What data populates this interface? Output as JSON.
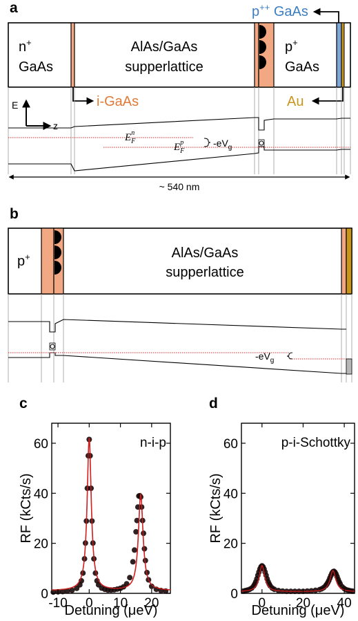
{
  "panel_a": {
    "letter": "a",
    "n_gaas_top": "n",
    "n_gaas_sup": "+",
    "n_gaas_bottom": "GaAs",
    "superlattice_line1": "AlAs/GaAs",
    "superlattice_line2": "supperlattice",
    "p_gaas_top": "p",
    "p_gaas_sup": "+",
    "p_gaas_bottom": "GaAs",
    "ppp_label": "p",
    "ppp_sup": "++",
    "ppp_suffix": " GaAs",
    "igaas_label": "i-GaAs",
    "au_label": "Au",
    "energy_axis": "E",
    "z_axis": "z",
    "efn_main": "E",
    "efn_sub": "F",
    "efn_sup": "n",
    "efp_main": "E",
    "efp_sub": "F",
    "efp_sup": "p",
    "vg_label": "-eV",
    "vg_sub": "g",
    "width_label": "~ 540 nm"
  },
  "panel_b": {
    "letter": "b",
    "p_label": "p",
    "p_sup": "+",
    "superlattice_line1": "AlAs/GaAs",
    "superlattice_line2": "supperlattice",
    "vg_label": "-eV",
    "vg_sub": "g"
  },
  "colors": {
    "igaas": "#f2a882",
    "ppp": "#7fa6d6",
    "au": "#c8961c",
    "gray_metal": "#b8b8b8",
    "fit": "#d42020",
    "fermi": "#d62a2a",
    "data": "#1a0a0a"
  },
  "chart_data": [
    {
      "panel": "c",
      "type": "scatter",
      "annotation": "n-i-p",
      "xlabel": "Detuning (μeV)",
      "ylabel": "RF  (kCts/s)",
      "xlim": [
        -12,
        26
      ],
      "ylim": [
        0,
        68
      ],
      "xticks": [
        "-10",
        "0",
        "10",
        "20"
      ],
      "yticks": [
        "0",
        "20",
        "40",
        "60"
      ],
      "peaks": [
        {
          "center": 0,
          "amplitude": 61,
          "hwhm": 0.8
        },
        {
          "center": 16.5,
          "amplitude": 38.5,
          "hwhm": 0.9
        }
      ],
      "background": 1.0,
      "x": [
        -11.5,
        -10,
        -8.5,
        -7,
        -5.5,
        -4,
        -3,
        -2.5,
        -2,
        -1.5,
        -1.2,
        -0.9,
        -0.6,
        -0.3,
        0,
        0.3,
        0.6,
        0.9,
        1.2,
        1.5,
        2,
        2.5,
        3,
        4,
        5,
        6,
        7,
        8,
        9,
        10,
        11,
        12,
        13,
        14,
        14.5,
        15,
        15.3,
        15.6,
        15.9,
        16.2,
        16.5,
        16.8,
        17.1,
        17.4,
        17.7,
        18,
        18.5,
        19,
        20,
        21.5,
        23,
        24.5
      ],
      "y": [
        0.5,
        0.6,
        0.7,
        0.9,
        1.2,
        2.0,
        3.4,
        5.0,
        8.1,
        13.8,
        20.1,
        28.9,
        42.0,
        55.0,
        61.5,
        55.0,
        42.0,
        28.9,
        20.1,
        13.8,
        8.1,
        5.0,
        3.4,
        2.1,
        1.6,
        1.3,
        1.3,
        1.4,
        1.7,
        2.0,
        2.6,
        3.8,
        6.3,
        12.6,
        17.3,
        24.6,
        29.1,
        34.5,
        38.9,
        39.0,
        38.5,
        34.5,
        29.1,
        24.0,
        17.8,
        13.1,
        8.3,
        5.4,
        2.8,
        1.6,
        1.1,
        0.9
      ]
    },
    {
      "panel": "d",
      "type": "scatter",
      "annotation": "p-i-Schottky",
      "xlabel": "Detuning (μeV)",
      "ylabel": "RF  (kCts/s)",
      "xlim": [
        -10,
        45
      ],
      "ylim": [
        0,
        68
      ],
      "xticks": [
        "0",
        "20",
        "40"
      ],
      "yticks": [
        "0",
        "20",
        "40",
        "60"
      ],
      "peaks": [
        {
          "center": 0,
          "amplitude": 10.5,
          "hwhm": 1.6
        },
        {
          "center": 34.5,
          "amplitude": 8.5,
          "hwhm": 1.7
        }
      ],
      "background": 0.6,
      "x": [
        -9,
        -8,
        -7,
        -6,
        -5,
        -4,
        -3.5,
        -3,
        -2.5,
        -2,
        -1.5,
        -1,
        -0.5,
        0,
        0.5,
        1,
        1.5,
        2,
        2.5,
        3,
        3.5,
        4,
        5,
        6,
        8,
        10,
        12,
        14,
        16,
        18,
        20,
        22,
        24,
        26,
        28,
        29,
        30,
        31,
        31.5,
        32,
        32.5,
        33,
        33.5,
        34,
        34.5,
        35,
        35.5,
        36,
        36.5,
        37,
        37.5,
        38,
        39,
        40,
        41,
        42,
        43,
        44
      ],
      "y": [
        0.9,
        1.1,
        1.3,
        1.6,
        2.1,
        3.0,
        3.7,
        4.6,
        5.8,
        7.2,
        8.5,
        9.7,
        10.6,
        11.0,
        10.6,
        9.7,
        8.5,
        7.2,
        5.8,
        4.6,
        3.7,
        3.0,
        2.1,
        1.6,
        1.1,
        0.9,
        0.8,
        0.8,
        0.8,
        0.8,
        0.8,
        0.9,
        1.0,
        1.2,
        1.5,
        1.8,
        2.3,
        3.1,
        3.6,
        4.3,
        5.1,
        6.1,
        7.1,
        8.0,
        8.6,
        8.8,
        8.4,
        7.7,
        6.7,
        5.6,
        4.6,
        3.8,
        2.6,
        1.9,
        1.4,
        1.2,
        1.0,
        0.9
      ]
    }
  ]
}
